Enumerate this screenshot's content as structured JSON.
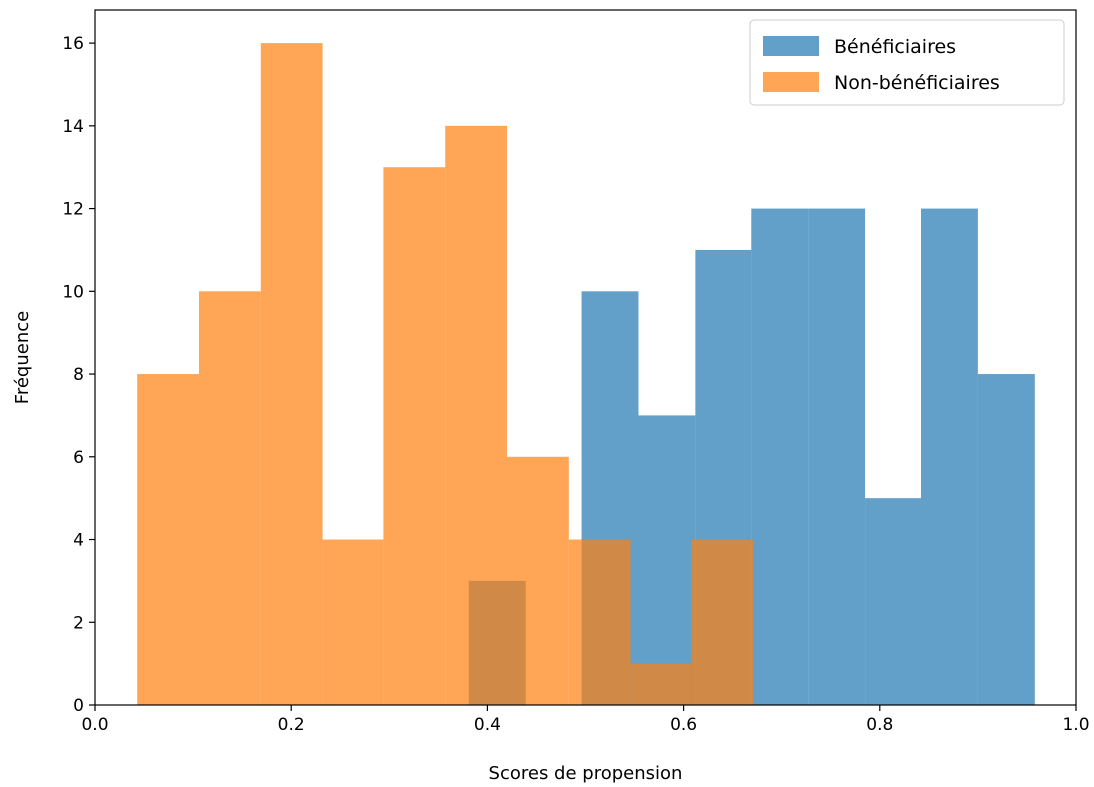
{
  "chart_data": {
    "type": "histogram",
    "title": "",
    "xlabel": "Scores de propension",
    "ylabel": "Fréquence",
    "xlim": [
      0.0,
      1.0
    ],
    "ylim": [
      0,
      16.8
    ],
    "xticks": [
      0.0,
      0.2,
      0.4,
      0.6,
      0.8,
      1.0
    ],
    "xtick_labels": [
      "0.0",
      "0.2",
      "0.4",
      "0.6",
      "0.8",
      "1.0"
    ],
    "yticks": [
      0,
      2,
      4,
      6,
      8,
      10,
      12,
      14,
      16
    ],
    "ytick_labels": [
      "0",
      "2",
      "4",
      "6",
      "8",
      "10",
      "12",
      "14",
      "16"
    ],
    "grid": false,
    "legend_position": "top-right",
    "series": [
      {
        "name": "Bénéficiaires",
        "color": "#1f77b4",
        "opacity": 0.7,
        "bins": [
          {
            "x0": 0.381,
            "x1": 0.439,
            "count": 3
          },
          {
            "x0": 0.439,
            "x1": 0.496,
            "count": 0
          },
          {
            "x0": 0.496,
            "x1": 0.554,
            "count": 10
          },
          {
            "x0": 0.554,
            "x1": 0.612,
            "count": 7
          },
          {
            "x0": 0.612,
            "x1": 0.669,
            "count": 11
          },
          {
            "x0": 0.669,
            "x1": 0.727,
            "count": 12
          },
          {
            "x0": 0.727,
            "x1": 0.785,
            "count": 12
          },
          {
            "x0": 0.785,
            "x1": 0.842,
            "count": 5
          },
          {
            "x0": 0.842,
            "x1": 0.9,
            "count": 12
          },
          {
            "x0": 0.9,
            "x1": 0.958,
            "count": 8
          }
        ]
      },
      {
        "name": "Non-bénéficiaires",
        "color": "#ff7f0e",
        "opacity": 0.7,
        "bins": [
          {
            "x0": 0.043,
            "x1": 0.106,
            "count": 8
          },
          {
            "x0": 0.106,
            "x1": 0.169,
            "count": 10
          },
          {
            "x0": 0.169,
            "x1": 0.232,
            "count": 16
          },
          {
            "x0": 0.232,
            "x1": 0.294,
            "count": 4
          },
          {
            "x0": 0.294,
            "x1": 0.357,
            "count": 13
          },
          {
            "x0": 0.357,
            "x1": 0.42,
            "count": 14
          },
          {
            "x0": 0.42,
            "x1": 0.483,
            "count": 6
          },
          {
            "x0": 0.483,
            "x1": 0.546,
            "count": 4
          },
          {
            "x0": 0.546,
            "x1": 0.608,
            "count": 1
          },
          {
            "x0": 0.608,
            "x1": 0.671,
            "count": 4
          }
        ]
      }
    ]
  }
}
